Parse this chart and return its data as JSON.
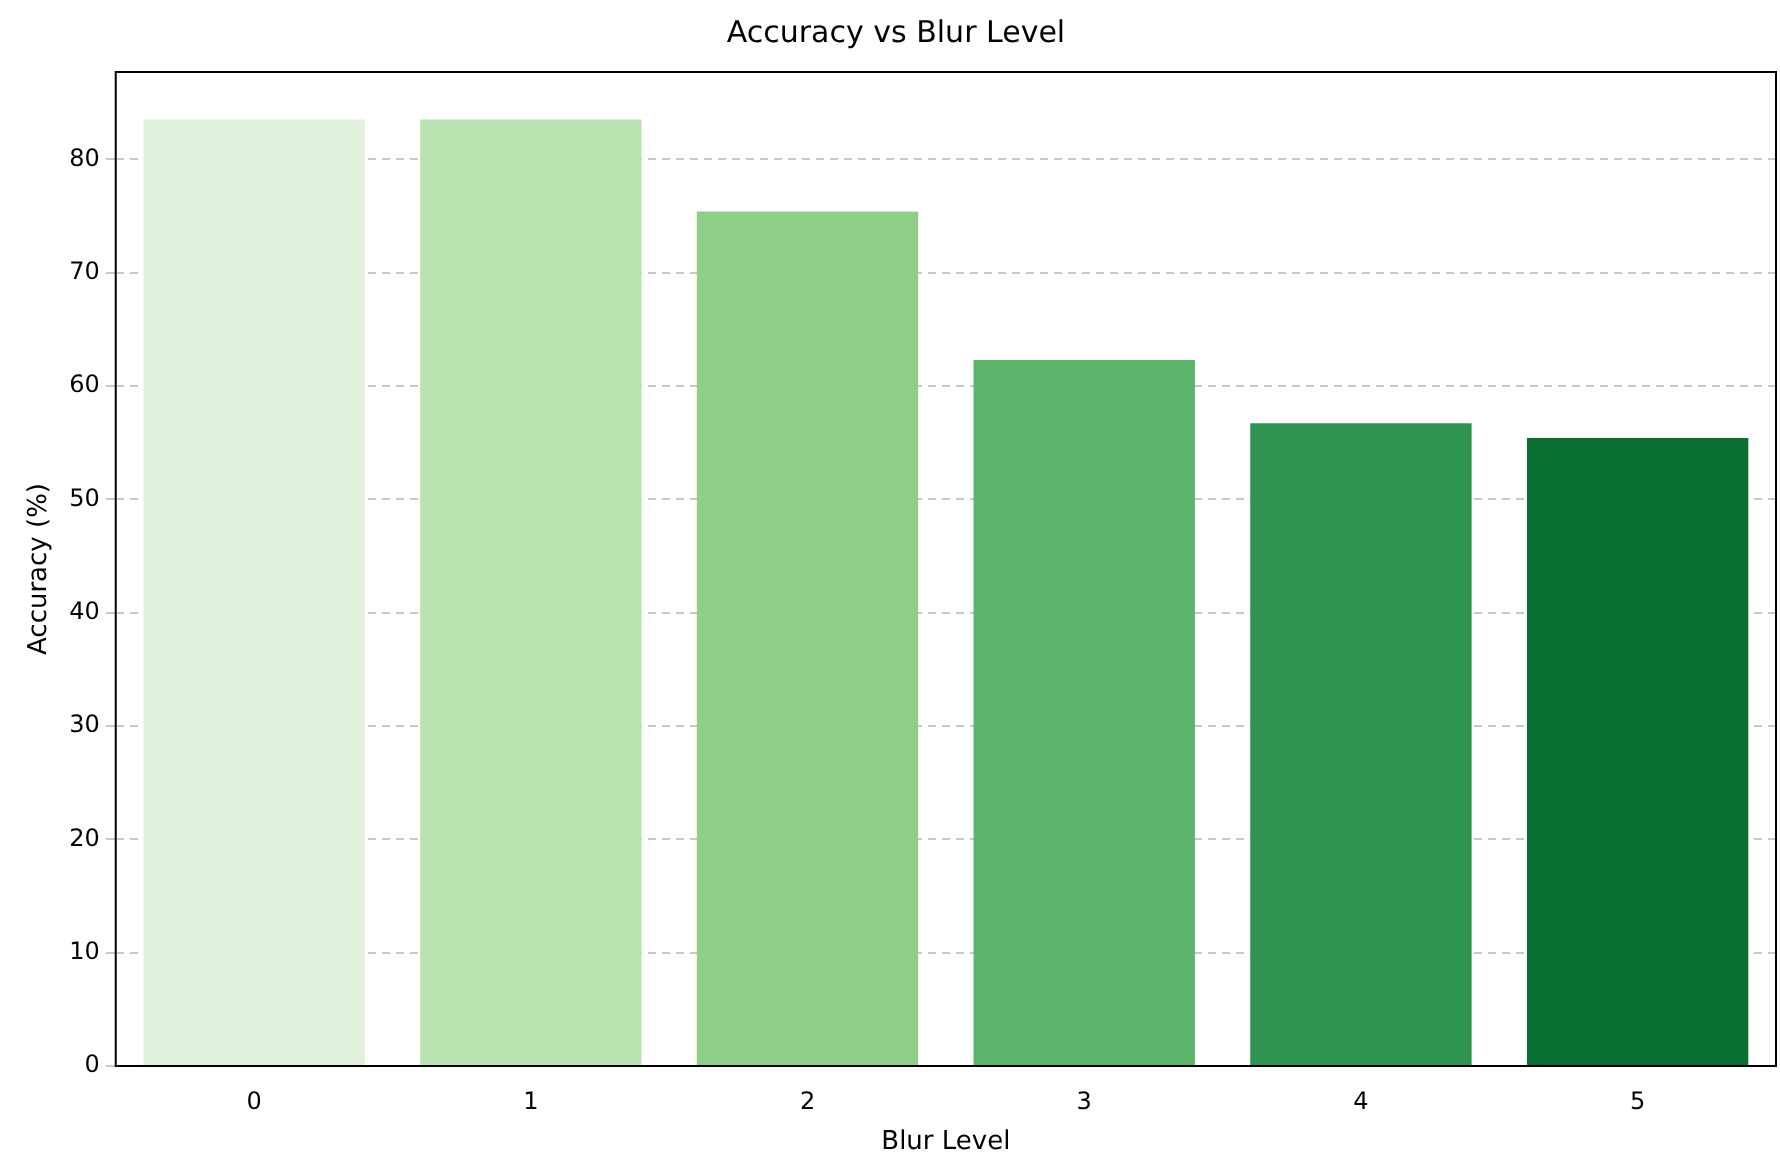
{
  "chart_data": {
    "type": "bar",
    "title": "Accuracy vs Blur Level",
    "xlabel": "Blur Level",
    "ylabel": "Accuracy (%)",
    "categories": [
      "0",
      "1",
      "2",
      "3",
      "4",
      "5"
    ],
    "values": [
      83.5,
      83.5,
      75.4,
      62.3,
      56.7,
      55.4
    ],
    "colors": [
      "#e0f2dc",
      "#bae3b2",
      "#8fce88",
      "#5ab469",
      "#2e944f",
      "#087030"
    ],
    "ylim": [
      0,
      87.7
    ],
    "yticks": [
      0,
      10,
      20,
      30,
      40,
      50,
      60,
      70,
      80
    ],
    "grid": "y"
  }
}
